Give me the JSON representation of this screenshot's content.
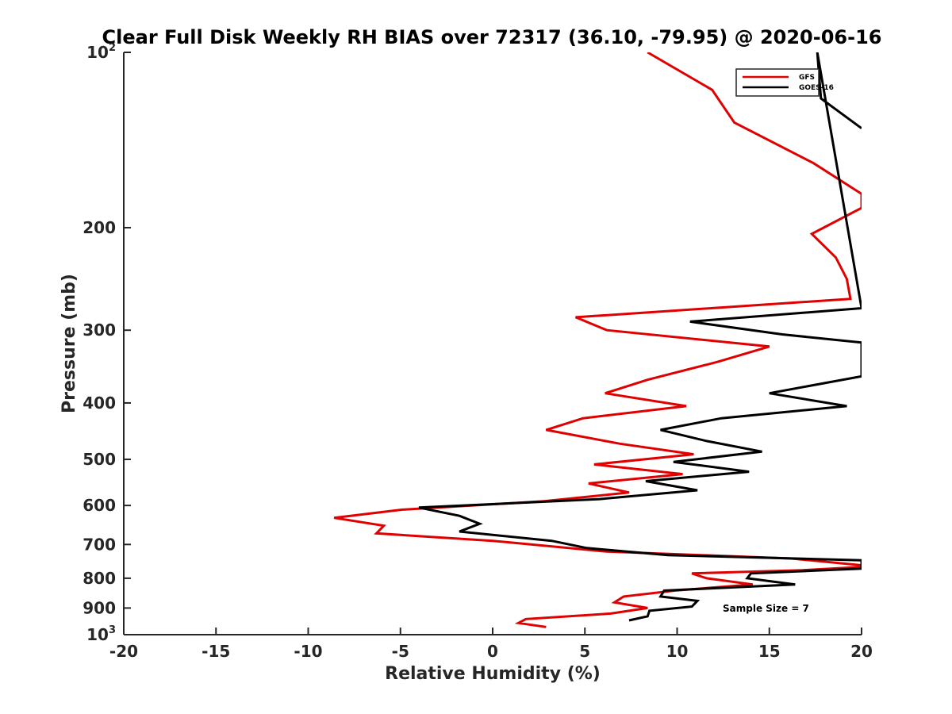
{
  "chart_data": {
    "type": "line",
    "title": "Clear Full Disk Weekly RH BIAS over 72317 (36.10, -79.95) @ 2020-06-16",
    "xlabel": "Relative Humidity (%)",
    "ylabel": "Pressure (mb)",
    "xlim": [
      -20,
      20
    ],
    "ylim": [
      100,
      1000
    ],
    "y_scale": "log",
    "y_reversed": true,
    "x_ticks": [
      "-20",
      "-15",
      "-10",
      "-5",
      "0",
      "5",
      "10",
      "15",
      "20"
    ],
    "y_ticks": [
      {
        "value": 100,
        "label": "10",
        "exp": "2"
      },
      {
        "value": 200,
        "label": "200"
      },
      {
        "value": 300,
        "label": "300"
      },
      {
        "value": 400,
        "label": "400"
      },
      {
        "value": 500,
        "label": "500"
      },
      {
        "value": 600,
        "label": "600"
      },
      {
        "value": 700,
        "label": "700"
      },
      {
        "value": 800,
        "label": "800"
      },
      {
        "value": 900,
        "label": "900"
      },
      {
        "value": 1000,
        "label": "10",
        "exp": "3"
      }
    ],
    "grid": false,
    "legend_position": "top-right",
    "annotation": "Sample Size = 7",
    "series": [
      {
        "name": "GFS",
        "color": "#e00000",
        "points": [
          [
            8.4,
            100
          ],
          [
            11.9,
            116
          ],
          [
            13.1,
            132
          ],
          [
            17.4,
            155
          ],
          [
            20,
            175
          ],
          [
            20,
            185
          ],
          [
            20,
            185
          ],
          [
            17.3,
            205
          ],
          [
            18.6,
            225
          ],
          [
            19.2,
            245
          ],
          [
            19.4,
            265
          ],
          [
            4.5,
            285
          ],
          [
            6.2,
            300
          ],
          [
            15,
            320
          ],
          [
            12.2,
            340
          ],
          [
            8.4,
            365
          ],
          [
            6.1,
            385
          ],
          [
            10.5,
            405
          ],
          [
            4.9,
            425
          ],
          [
            2.9,
            445
          ],
          [
            6.9,
            470
          ],
          [
            10.9,
            490
          ],
          [
            5.5,
            510
          ],
          [
            10.3,
            530
          ],
          [
            5.2,
            550
          ],
          [
            7.4,
            570
          ],
          [
            2.8,
            590
          ],
          [
            -4.9,
            610
          ],
          [
            -8.6,
            630
          ],
          [
            -5.9,
            650
          ],
          [
            -6.3,
            670
          ],
          [
            0,
            690
          ],
          [
            6.2,
            720
          ],
          [
            16.2,
            740
          ],
          [
            20,
            760
          ],
          [
            20,
            765
          ],
          [
            16.8,
            775
          ],
          [
            10.8,
            785
          ],
          [
            11.6,
            800
          ],
          [
            14.1,
            820
          ],
          [
            9.9,
            840
          ],
          [
            7.1,
            860
          ],
          [
            6.6,
            880
          ],
          [
            8.4,
            900
          ],
          [
            6.4,
            920
          ],
          [
            1.8,
            940
          ],
          [
            1.4,
            955
          ],
          [
            2.9,
            970
          ]
        ]
      },
      {
        "name": "GOES-16",
        "color": "#000000",
        "points": [
          [
            20,
            135
          ],
          [
            17.8,
            120
          ],
          [
            17.6,
            100
          ],
          [
            20,
            275
          ],
          [
            10.7,
            290
          ],
          [
            15.7,
            305
          ],
          [
            20,
            315
          ],
          [
            20,
            360
          ],
          [
            15,
            385
          ],
          [
            19.2,
            405
          ],
          [
            12.4,
            425
          ],
          [
            9.1,
            445
          ],
          [
            11.6,
            465
          ],
          [
            14.6,
            485
          ],
          [
            9.8,
            505
          ],
          [
            13.9,
            525
          ],
          [
            8.3,
            545
          ],
          [
            11.1,
            565
          ],
          [
            5.8,
            585
          ],
          [
            -4,
            605
          ],
          [
            -1.8,
            625
          ],
          [
            -0.7,
            645
          ],
          [
            -1.8,
            665
          ],
          [
            3.2,
            690
          ],
          [
            5.1,
            710
          ],
          [
            9.5,
            730
          ],
          [
            20,
            745
          ],
          [
            20,
            770
          ],
          [
            14,
            785
          ],
          [
            13.8,
            800
          ],
          [
            16.4,
            820
          ],
          [
            9.3,
            840
          ],
          [
            9.1,
            860
          ],
          [
            11.1,
            875
          ],
          [
            10.8,
            895
          ],
          [
            8.5,
            910
          ],
          [
            8.4,
            930
          ],
          [
            7.4,
            945
          ]
        ]
      }
    ]
  }
}
